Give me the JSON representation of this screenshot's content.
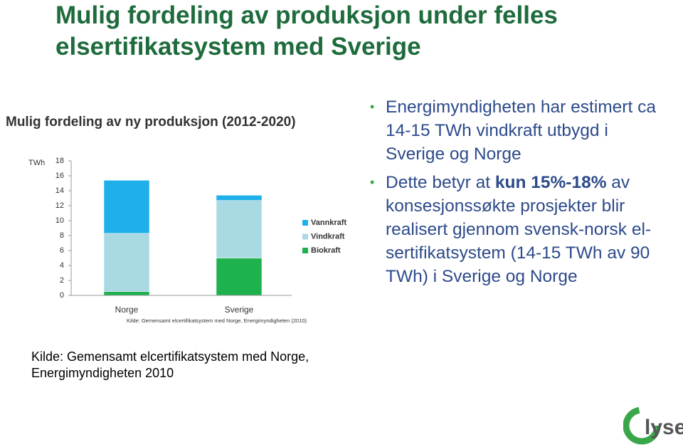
{
  "title": "Mulig fordeling av produksjon under felles elsertifikatsystem med Sverige",
  "bullets": [
    {
      "parts": [
        "Energimyndigheten har estimert ca 14-15 TWh vindkraft utbygd i Sverige og Norge"
      ]
    },
    {
      "parts": [
        "Dette betyr at ",
        "kun 15%-18%",
        " av konsesjonssøkte prosjekter blir realisert gjennom svensk-norsk el-sertifikatsystem (14-15 TWh av 90 TWh) i Sverige og Norge"
      ]
    }
  ],
  "source": "Kilde: Gemensamt elcertifikatsystem med Norge, Energimyndigheten 2010",
  "logo": "lyse",
  "chart_data": {
    "type": "stacked_bar",
    "title": "Mulig fordeling av ny produksjon (2012-2020)",
    "y_label": "TWh",
    "categories": [
      "Norge",
      "Sverige"
    ],
    "series": [
      {
        "name": "Biokraft",
        "color": "#1db24e",
        "values": [
          0.5,
          5.0
        ]
      },
      {
        "name": "Vindkraft",
        "color": "#a9d9e3",
        "values": [
          7.8,
          7.7
        ]
      },
      {
        "name": "Vannkraft",
        "color": "#1fb0ea",
        "values": [
          7.1,
          0.7
        ]
      }
    ],
    "ylim": [
      0,
      18
    ],
    "yticks": [
      0,
      2,
      4,
      6,
      8,
      10,
      12,
      14,
      16,
      18
    ],
    "legend": "right",
    "source": "Kilde: Gemensamt elcertifikatsystem med Norge, Energimyndigheten (2010)"
  }
}
